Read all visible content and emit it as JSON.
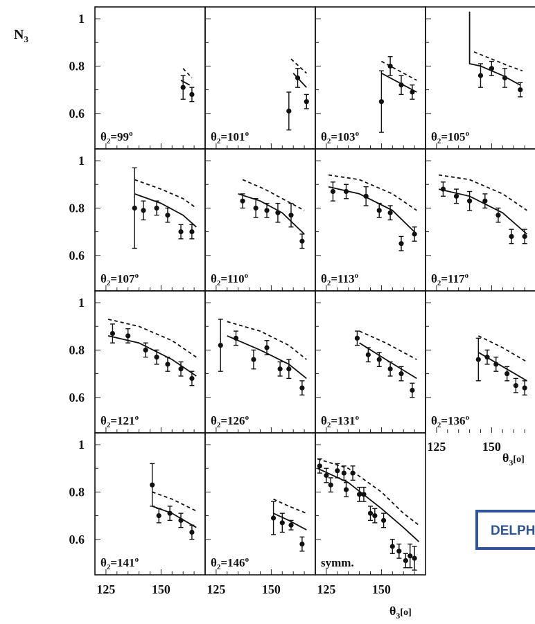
{
  "figure": {
    "y_axis_title": "N",
    "y_axis_title_sub": "3",
    "x_axis_title_main": "θ",
    "x_axis_title_sub": "3",
    "x_axis_title_unit": "[o]",
    "x_axis_title_side": "θ",
    "badge": "DELPHI"
  },
  "chart_data": [
    {
      "type": "scatter",
      "panel_label_base": "θ",
      "panel_label_sub": "2",
      "panel_label_value": "=99",
      "panel_label_sup": "o",
      "ylim": [
        0.45,
        1.05
      ],
      "xlim": [
        120,
        170
      ],
      "grid": false,
      "points": [
        {
          "x": 160,
          "y": 0.71,
          "err": 0.05
        },
        {
          "x": 164,
          "y": 0.68,
          "err": 0.03
        }
      ],
      "solid": [
        [
          159,
          0.74
        ],
        [
          163,
          0.72
        ]
      ],
      "dashed": [
        [
          160,
          0.79
        ],
        [
          164,
          0.75
        ]
      ]
    },
    {
      "type": "scatter",
      "panel_label_base": "θ",
      "panel_label_sub": "2",
      "panel_label_value": "=101",
      "panel_label_sup": "o",
      "ylim": [
        0.45,
        1.05
      ],
      "xlim": [
        120,
        170
      ],
      "grid": false,
      "points": [
        {
          "x": 158,
          "y": 0.61,
          "err": 0.08
        },
        {
          "x": 162,
          "y": 0.75,
          "err": 0.04
        },
        {
          "x": 166,
          "y": 0.65,
          "err": 0.03
        }
      ],
      "solid": [
        [
          160,
          0.77
        ],
        [
          166,
          0.71
        ]
      ],
      "dashed": [
        [
          159,
          0.83
        ],
        [
          166,
          0.77
        ]
      ]
    },
    {
      "type": "scatter",
      "panel_label_base": "θ",
      "panel_label_sub": "2",
      "panel_label_value": "=103",
      "panel_label_sup": "o",
      "ylim": [
        0.45,
        1.05
      ],
      "xlim": [
        120,
        170
      ],
      "grid": false,
      "points": [
        {
          "x": 150,
          "y": 0.65,
          "err": 0.13
        },
        {
          "x": 154,
          "y": 0.8,
          "err": 0.04
        },
        {
          "x": 159,
          "y": 0.72,
          "err": 0.04
        },
        {
          "x": 164,
          "y": 0.69,
          "err": 0.03
        }
      ],
      "solid": [
        [
          150,
          0.77
        ],
        [
          166,
          0.69
        ]
      ],
      "dashed": [
        [
          150,
          0.82
        ],
        [
          166,
          0.74
        ]
      ]
    },
    {
      "type": "scatter",
      "panel_label_base": "θ",
      "panel_label_sub": "2",
      "panel_label_value": "=105",
      "panel_label_sup": "o",
      "ylim": [
        0.45,
        1.05
      ],
      "xlim": [
        120,
        170
      ],
      "grid": false,
      "points": [
        {
          "x": 145,
          "y": 0.76,
          "err": 0.05
        },
        {
          "x": 150,
          "y": 0.79,
          "err": 0.03
        },
        {
          "x": 156,
          "y": 0.75,
          "err": 0.04
        },
        {
          "x": 163,
          "y": 0.7,
          "err": 0.03
        }
      ],
      "solid": [
        [
          140,
          1.03
        ],
        [
          140,
          0.81
        ],
        [
          145,
          0.8
        ],
        [
          155,
          0.76
        ],
        [
          163,
          0.72
        ]
      ],
      "dashed": [
        [
          142,
          0.86
        ],
        [
          150,
          0.83
        ],
        [
          158,
          0.8
        ],
        [
          164,
          0.78
        ]
      ]
    },
    {
      "type": "scatter",
      "panel_label_base": "θ",
      "panel_label_sub": "2",
      "panel_label_value": "=107",
      "panel_label_sup": "o",
      "ylim": [
        0.45,
        1.05
      ],
      "xlim": [
        120,
        170
      ],
      "grid": false,
      "points": [
        {
          "x": 138,
          "y": 0.8,
          "err": 0.17
        },
        {
          "x": 142,
          "y": 0.79,
          "err": 0.04
        },
        {
          "x": 148,
          "y": 0.8,
          "err": 0.03
        },
        {
          "x": 153,
          "y": 0.77,
          "err": 0.03
        },
        {
          "x": 159,
          "y": 0.7,
          "err": 0.03
        },
        {
          "x": 164,
          "y": 0.7,
          "err": 0.03
        }
      ],
      "solid": [
        [
          138,
          0.86
        ],
        [
          150,
          0.82
        ],
        [
          160,
          0.77
        ],
        [
          166,
          0.72
        ]
      ],
      "dashed": [
        [
          138,
          0.92
        ],
        [
          150,
          0.88
        ],
        [
          160,
          0.84
        ],
        [
          166,
          0.8
        ]
      ]
    },
    {
      "type": "scatter",
      "panel_label_base": "θ",
      "panel_label_sub": "2",
      "panel_label_value": "=110",
      "panel_label_sup": "o",
      "ylim": [
        0.45,
        1.05
      ],
      "xlim": [
        120,
        170
      ],
      "grid": false,
      "points": [
        {
          "x": 137,
          "y": 0.83,
          "err": 0.03
        },
        {
          "x": 143,
          "y": 0.8,
          "err": 0.04
        },
        {
          "x": 148,
          "y": 0.79,
          "err": 0.03
        },
        {
          "x": 153,
          "y": 0.78,
          "err": 0.04
        },
        {
          "x": 159,
          "y": 0.77,
          "err": 0.05
        },
        {
          "x": 164,
          "y": 0.66,
          "err": 0.03
        }
      ],
      "solid": [
        [
          135,
          0.86
        ],
        [
          145,
          0.83
        ],
        [
          155,
          0.78
        ],
        [
          165,
          0.69
        ]
      ],
      "dashed": [
        [
          137,
          0.92
        ],
        [
          147,
          0.88
        ],
        [
          157,
          0.83
        ],
        [
          165,
          0.79
        ]
      ]
    },
    {
      "type": "scatter",
      "panel_label_base": "θ",
      "panel_label_sub": "2",
      "panel_label_value": "=113",
      "panel_label_sup": "o",
      "ylim": [
        0.45,
        1.05
      ],
      "xlim": [
        120,
        170
      ],
      "grid": false,
      "points": [
        {
          "x": 128,
          "y": 0.87,
          "err": 0.04
        },
        {
          "x": 134,
          "y": 0.87,
          "err": 0.03
        },
        {
          "x": 143,
          "y": 0.85,
          "err": 0.04
        },
        {
          "x": 149,
          "y": 0.79,
          "err": 0.03
        },
        {
          "x": 154,
          "y": 0.78,
          "err": 0.03
        },
        {
          "x": 159,
          "y": 0.65,
          "err": 0.03
        },
        {
          "x": 165,
          "y": 0.69,
          "err": 0.03
        }
      ],
      "solid": [
        [
          126,
          0.89
        ],
        [
          140,
          0.86
        ],
        [
          155,
          0.79
        ],
        [
          166,
          0.69
        ]
      ],
      "dashed": [
        [
          126,
          0.94
        ],
        [
          140,
          0.92
        ],
        [
          155,
          0.86
        ],
        [
          166,
          0.79
        ]
      ]
    },
    {
      "type": "scatter",
      "panel_label_base": "θ",
      "panel_label_sub": "2",
      "panel_label_value": "=117",
      "panel_label_sup": "o",
      "ylim": [
        0.45,
        1.05
      ],
      "xlim": [
        120,
        170
      ],
      "grid": false,
      "points": [
        {
          "x": 128,
          "y": 0.88,
          "err": 0.03
        },
        {
          "x": 134,
          "y": 0.85,
          "err": 0.03
        },
        {
          "x": 140,
          "y": 0.83,
          "err": 0.04
        },
        {
          "x": 147,
          "y": 0.83,
          "err": 0.03
        },
        {
          "x": 153,
          "y": 0.77,
          "err": 0.03
        },
        {
          "x": 159,
          "y": 0.68,
          "err": 0.03
        },
        {
          "x": 165,
          "y": 0.68,
          "err": 0.03
        }
      ],
      "solid": [
        [
          126,
          0.88
        ],
        [
          140,
          0.85
        ],
        [
          155,
          0.78
        ],
        [
          166,
          0.69
        ]
      ],
      "dashed": [
        [
          126,
          0.94
        ],
        [
          140,
          0.92
        ],
        [
          155,
          0.86
        ],
        [
          166,
          0.79
        ]
      ]
    },
    {
      "type": "scatter",
      "panel_label_base": "θ",
      "panel_label_sub": "2",
      "panel_label_value": "=121",
      "panel_label_sup": "o",
      "ylim": [
        0.45,
        1.05
      ],
      "xlim": [
        120,
        170
      ],
      "grid": false,
      "points": [
        {
          "x": 128,
          "y": 0.87,
          "err": 0.04
        },
        {
          "x": 135,
          "y": 0.86,
          "err": 0.03
        },
        {
          "x": 143,
          "y": 0.8,
          "err": 0.03
        },
        {
          "x": 148,
          "y": 0.77,
          "err": 0.03
        },
        {
          "x": 153,
          "y": 0.74,
          "err": 0.03
        },
        {
          "x": 159,
          "y": 0.72,
          "err": 0.03
        },
        {
          "x": 164,
          "y": 0.68,
          "err": 0.03
        }
      ],
      "solid": [
        [
          126,
          0.86
        ],
        [
          140,
          0.83
        ],
        [
          155,
          0.76
        ],
        [
          166,
          0.69
        ]
      ],
      "dashed": [
        [
          126,
          0.93
        ],
        [
          140,
          0.9
        ],
        [
          155,
          0.84
        ],
        [
          166,
          0.77
        ]
      ]
    },
    {
      "type": "scatter",
      "panel_label_base": "θ",
      "panel_label_sub": "2",
      "panel_label_value": "=126",
      "panel_label_sup": "o",
      "ylim": [
        0.45,
        1.05
      ],
      "xlim": [
        120,
        170
      ],
      "grid": false,
      "points": [
        {
          "x": 127,
          "y": 0.82,
          "err": 0.11
        },
        {
          "x": 134,
          "y": 0.85,
          "err": 0.03
        },
        {
          "x": 142,
          "y": 0.76,
          "err": 0.04
        },
        {
          "x": 148,
          "y": 0.81,
          "err": 0.03
        },
        {
          "x": 154,
          "y": 0.72,
          "err": 0.03
        },
        {
          "x": 158,
          "y": 0.72,
          "err": 0.04
        },
        {
          "x": 164,
          "y": 0.64,
          "err": 0.03
        }
      ],
      "solid": [
        [
          130,
          0.86
        ],
        [
          145,
          0.8
        ],
        [
          158,
          0.74
        ],
        [
          166,
          0.68
        ]
      ],
      "dashed": [
        [
          130,
          0.92
        ],
        [
          145,
          0.88
        ],
        [
          158,
          0.82
        ],
        [
          166,
          0.76
        ]
      ]
    },
    {
      "type": "scatter",
      "panel_label_base": "θ",
      "panel_label_sub": "2",
      "panel_label_value": "=131",
      "panel_label_sup": "o",
      "ylim": [
        0.45,
        1.05
      ],
      "xlim": [
        120,
        170
      ],
      "grid": false,
      "points": [
        {
          "x": 139,
          "y": 0.85,
          "err": 0.03
        },
        {
          "x": 144,
          "y": 0.78,
          "err": 0.03
        },
        {
          "x": 149,
          "y": 0.76,
          "err": 0.03
        },
        {
          "x": 154,
          "y": 0.72,
          "err": 0.03
        },
        {
          "x": 159,
          "y": 0.7,
          "err": 0.03
        },
        {
          "x": 164,
          "y": 0.63,
          "err": 0.03
        }
      ],
      "solid": [
        [
          140,
          0.83
        ],
        [
          152,
          0.76
        ],
        [
          166,
          0.68
        ]
      ],
      "dashed": [
        [
          140,
          0.88
        ],
        [
          152,
          0.83
        ],
        [
          166,
          0.76
        ]
      ]
    },
    {
      "type": "scatter",
      "panel_label_base": "θ",
      "panel_label_sub": "2",
      "panel_label_value": "=136",
      "panel_label_sup": "o",
      "ylim": [
        0.45,
        1.05
      ],
      "xlim": [
        120,
        170
      ],
      "grid": false,
      "points": [
        {
          "x": 144,
          "y": 0.76,
          "err": 0.09
        },
        {
          "x": 148,
          "y": 0.77,
          "err": 0.03
        },
        {
          "x": 152,
          "y": 0.74,
          "err": 0.03
        },
        {
          "x": 157,
          "y": 0.7,
          "err": 0.03
        },
        {
          "x": 161,
          "y": 0.65,
          "err": 0.03
        },
        {
          "x": 165,
          "y": 0.64,
          "err": 0.03
        }
      ],
      "solid": [
        [
          144,
          0.79
        ],
        [
          155,
          0.73
        ],
        [
          166,
          0.67
        ]
      ],
      "dashed": [
        [
          144,
          0.86
        ],
        [
          155,
          0.81
        ],
        [
          166,
          0.75
        ]
      ]
    },
    {
      "type": "scatter",
      "panel_label_base": "θ",
      "panel_label_sub": "2",
      "panel_label_value": "=141",
      "panel_label_sup": "o",
      "ylim": [
        0.45,
        1.05
      ],
      "xlim": [
        120,
        170
      ],
      "grid": false,
      "points": [
        {
          "x": 146,
          "y": 0.83,
          "err": 0.09
        },
        {
          "x": 149,
          "y": 0.7,
          "err": 0.03
        },
        {
          "x": 154,
          "y": 0.71,
          "err": 0.03
        },
        {
          "x": 159,
          "y": 0.68,
          "err": 0.03
        },
        {
          "x": 164,
          "y": 0.63,
          "err": 0.03
        }
      ],
      "solid": [
        [
          146,
          0.74
        ],
        [
          155,
          0.71
        ],
        [
          166,
          0.65
        ]
      ],
      "dashed": [
        [
          146,
          0.8
        ],
        [
          155,
          0.77
        ],
        [
          166,
          0.72
        ]
      ]
    },
    {
      "type": "scatter",
      "panel_label_base": "θ",
      "panel_label_sub": "2",
      "panel_label_value": "=146",
      "panel_label_sup": "o",
      "ylim": [
        0.45,
        1.05
      ],
      "xlim": [
        120,
        170
      ],
      "grid": false,
      "points": [
        {
          "x": 151,
          "y": 0.69,
          "err": 0.07
        },
        {
          "x": 155,
          "y": 0.67,
          "err": 0.04
        },
        {
          "x": 159,
          "y": 0.66,
          "err": 0.02
        },
        {
          "x": 164,
          "y": 0.58,
          "err": 0.03
        }
      ],
      "solid": [
        [
          151,
          0.71
        ],
        [
          158,
          0.68
        ],
        [
          166,
          0.64
        ]
      ],
      "dashed": [
        [
          151,
          0.77
        ],
        [
          158,
          0.74
        ],
        [
          166,
          0.71
        ]
      ]
    },
    {
      "type": "scatter",
      "panel_label_base": "symm.",
      "panel_label_sub": "",
      "panel_label_value": "",
      "panel_label_sup": "",
      "ylim": [
        0.45,
        1.05
      ],
      "xlim": [
        120,
        170
      ],
      "grid": false,
      "points": [
        {
          "x": 122,
          "y": 0.91,
          "err": 0.03
        },
        {
          "x": 125,
          "y": 0.87,
          "err": 0.03
        },
        {
          "x": 127,
          "y": 0.83,
          "err": 0.03
        },
        {
          "x": 130,
          "y": 0.89,
          "err": 0.03
        },
        {
          "x": 133,
          "y": 0.88,
          "err": 0.03
        },
        {
          "x": 134,
          "y": 0.81,
          "err": 0.03
        },
        {
          "x": 137,
          "y": 0.88,
          "err": 0.03
        },
        {
          "x": 140,
          "y": 0.79,
          "err": 0.03
        },
        {
          "x": 142,
          "y": 0.79,
          "err": 0.03
        },
        {
          "x": 145,
          "y": 0.71,
          "err": 0.03
        },
        {
          "x": 147,
          "y": 0.7,
          "err": 0.03
        },
        {
          "x": 151,
          "y": 0.68,
          "err": 0.03
        },
        {
          "x": 155,
          "y": 0.57,
          "err": 0.03
        },
        {
          "x": 158,
          "y": 0.55,
          "err": 0.03
        },
        {
          "x": 161,
          "y": 0.51,
          "err": 0.03
        },
        {
          "x": 163,
          "y": 0.53,
          "err": 0.05
        },
        {
          "x": 165,
          "y": 0.52,
          "err": 0.05
        }
      ],
      "solid": [
        [
          121,
          0.9
        ],
        [
          135,
          0.84
        ],
        [
          150,
          0.73
        ],
        [
          160,
          0.65
        ],
        [
          167,
          0.59
        ]
      ],
      "dashed": [
        [
          121,
          0.94
        ],
        [
          135,
          0.9
        ],
        [
          150,
          0.8
        ],
        [
          160,
          0.71
        ],
        [
          167,
          0.66
        ]
      ]
    }
  ],
  "axes": {
    "y_ticks": [
      {
        "v": 1,
        "label": "1"
      },
      {
        "v": 0.8,
        "label": "0.8"
      },
      {
        "v": 0.6,
        "label": "0.6"
      }
    ],
    "x_ticks": [
      {
        "v": 125,
        "label": "125"
      },
      {
        "v": 150,
        "label": "150"
      }
    ]
  }
}
